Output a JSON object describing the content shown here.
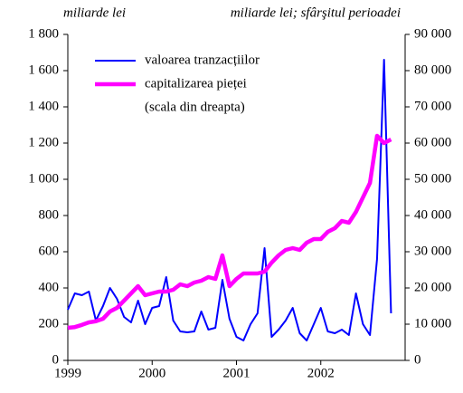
{
  "chart_data": {
    "type": "line",
    "y_label": "miliarde lei",
    "y2_label": "miliarde lei; sfârşitul perioadei",
    "legend_note": "(scala din dreapta)",
    "legend": "upper left",
    "xlim": [
      1999,
      2003
    ],
    "xticks": [
      1999,
      2000,
      2001,
      2002
    ],
    "ylim": [
      0,
      1800
    ],
    "yticks": [
      0,
      200,
      400,
      600,
      800,
      {
        "value": 1000,
        "label": "1 000"
      },
      {
        "value": 1200,
        "label": "1 200"
      },
      {
        "value": 1400,
        "label": "1 400"
      },
      {
        "value": 1600,
        "label": "1 600"
      },
      {
        "value": 1800,
        "label": "1 800"
      }
    ],
    "y2lim": [
      0,
      90000
    ],
    "y2ticks": [
      0,
      {
        "value": 10000,
        "label": "10 000"
      },
      {
        "value": 20000,
        "label": "20 000"
      },
      {
        "value": 30000,
        "label": "30 000"
      },
      {
        "value": 40000,
        "label": "40 000"
      },
      {
        "value": 50000,
        "label": "50 000"
      },
      {
        "value": 60000,
        "label": "60 000"
      },
      {
        "value": 70000,
        "label": "70 000"
      },
      {
        "value": 80000,
        "label": "80 000"
      },
      {
        "value": 90000,
        "label": "90 000"
      }
    ],
    "x": [
      1999,
      1999.083,
      1999.167,
      1999.25,
      1999.333,
      1999.417,
      1999.5,
      1999.583,
      1999.667,
      1999.75,
      1999.833,
      1999.917,
      2000,
      2000.083,
      2000.167,
      2000.25,
      2000.333,
      2000.417,
      2000.5,
      2000.583,
      2000.667,
      2000.75,
      2000.833,
      2000.917,
      2001,
      2001.083,
      2001.167,
      2001.25,
      2001.333,
      2001.417,
      2001.5,
      2001.583,
      2001.667,
      2001.75,
      2001.833,
      2001.917,
      2002,
      2002.083,
      2002.167,
      2002.25,
      2002.333,
      2002.417,
      2002.5,
      2002.583,
      2002.667,
      2002.75,
      2002.833
    ],
    "series": [
      {
        "name": "valoarea tranzacțiilor",
        "color": "#0000ff",
        "width": 2,
        "values": [
          280,
          370,
          360,
          380,
          220,
          300,
          400,
          340,
          240,
          210,
          330,
          200,
          290,
          300,
          460,
          220,
          160,
          155,
          160,
          270,
          170,
          180,
          445,
          230,
          130,
          110,
          200,
          260,
          620,
          130,
          170,
          220,
          290,
          150,
          110,
          200,
          290,
          160,
          150,
          170,
          140,
          370,
          200,
          140,
          560,
          1660,
          260
        ]
      },
      {
        "name": "capitalizarea pieței",
        "color": "#ff00ff",
        "width": 4.5,
        "axis": "y2",
        "values": [
          9000,
          9200,
          9800,
          10500,
          10800,
          11500,
          13500,
          14500,
          16500,
          18500,
          20500,
          18000,
          18500,
          19000,
          19000,
          19500,
          21000,
          20500,
          21500,
          22000,
          23000,
          22500,
          29000,
          20500,
          22500,
          24000,
          24000,
          24000,
          24500,
          27000,
          29000,
          30500,
          31000,
          30500,
          32500,
          33500,
          33500,
          35500,
          36500,
          38500,
          38000,
          41000,
          45000,
          49000,
          62000,
          60000,
          61000
        ]
      }
    ]
  }
}
